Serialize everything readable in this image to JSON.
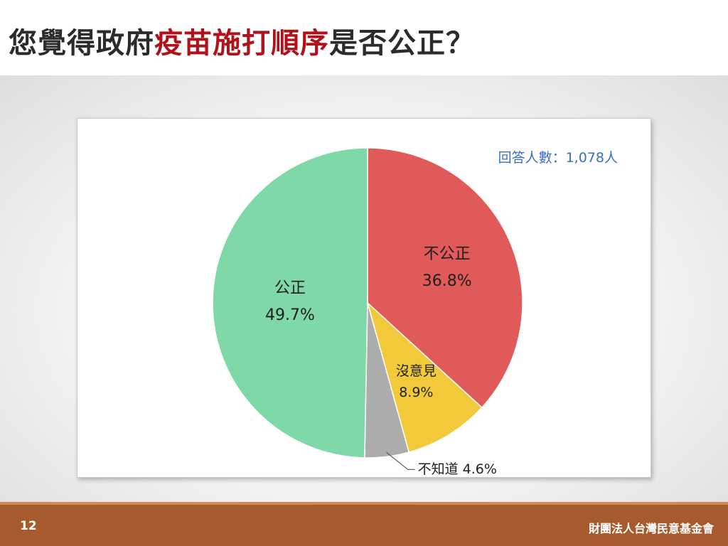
{
  "slide": {
    "title_pre": "您覺得政府",
    "title_highlight": "疫苗施打順序",
    "title_post": "是否公正？",
    "page_number": "12",
    "organization": "財團法人台灣民意基金會"
  },
  "colors": {
    "title_highlight": "#b0121b",
    "footer": "#a65a2e",
    "respondents_text": "#3b6fc0"
  },
  "chart_data": {
    "type": "pie",
    "annotation": "回答人數：1,078人",
    "slices": [
      {
        "label": "不公正",
        "value": 36.8,
        "value_label": "36.8%",
        "color": "#e05a5a"
      },
      {
        "label": "沒意見",
        "value": 8.9,
        "value_label": "8.9%",
        "color": "#f1c93b"
      },
      {
        "label": "不知道",
        "value": 4.6,
        "value_label": "4.6%",
        "color": "#acacac"
      },
      {
        "label": "公正",
        "value": 49.7,
        "value_label": "49.7%",
        "color": "#7ed8a7"
      }
    ]
  }
}
